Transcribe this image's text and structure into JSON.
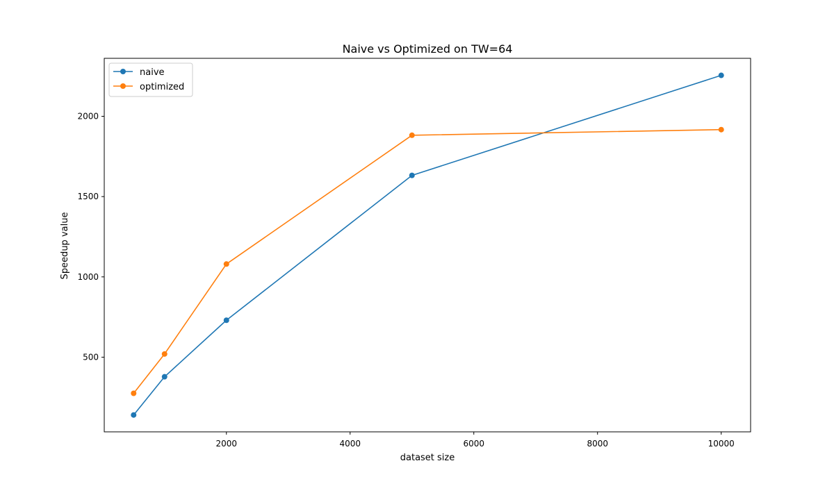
{
  "chart_data": {
    "type": "line",
    "title": "Naive vs Optimized on TW=64",
    "xlabel": "dataset size",
    "ylabel": "Speedup value",
    "x": [
      500,
      1000,
      2000,
      5000,
      10000
    ],
    "series": [
      {
        "name": "naive",
        "color": "#1f77b4",
        "values": [
          140,
          378,
          730,
          1632,
          2255
        ]
      },
      {
        "name": "optimized",
        "color": "#ff7f0e",
        "values": [
          275,
          520,
          1080,
          1882,
          1917
        ]
      }
    ],
    "xticks": [
      2000,
      4000,
      6000,
      8000,
      10000
    ],
    "yticks": [
      500,
      1000,
      1500,
      2000
    ],
    "xlim": [
      25,
      10475
    ],
    "ylim": [
      35,
      2361
    ],
    "grid": false,
    "legend": "top-left",
    "markers": true
  }
}
